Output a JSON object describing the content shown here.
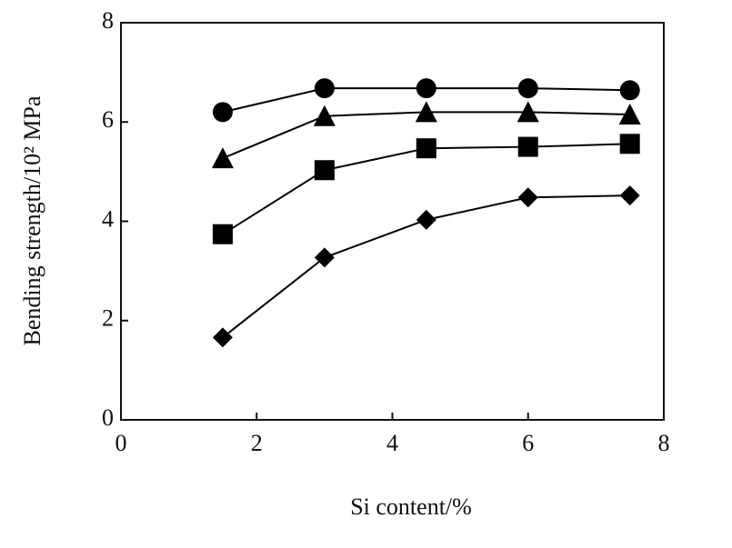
{
  "chart_data": {
    "type": "line",
    "x_label": "Si content/%",
    "y_label": "Bending strength/10² MPa",
    "x": [
      1.5,
      3,
      4.5,
      6,
      7.5
    ],
    "series": [
      {
        "color": "#000000",
        "marker": "circle",
        "values": [
          6.2,
          6.68,
          6.68,
          6.68,
          6.64
        ]
      },
      {
        "color": "#000000",
        "marker": "triangle",
        "values": [
          5.27,
          6.12,
          6.2,
          6.2,
          6.15
        ]
      },
      {
        "color": "#000000",
        "marker": "square",
        "values": [
          3.74,
          5.03,
          5.47,
          5.5,
          5.56
        ]
      },
      {
        "color": "#000000",
        "marker": "diamond",
        "values": [
          1.66,
          3.27,
          4.03,
          4.48,
          4.52
        ]
      }
    ],
    "xlim": [
      0,
      8
    ],
    "xticks": [
      0,
      2,
      4,
      6,
      8
    ],
    "ylim": [
      0,
      8
    ],
    "yticks": [
      0,
      2,
      4,
      6,
      8
    ]
  }
}
